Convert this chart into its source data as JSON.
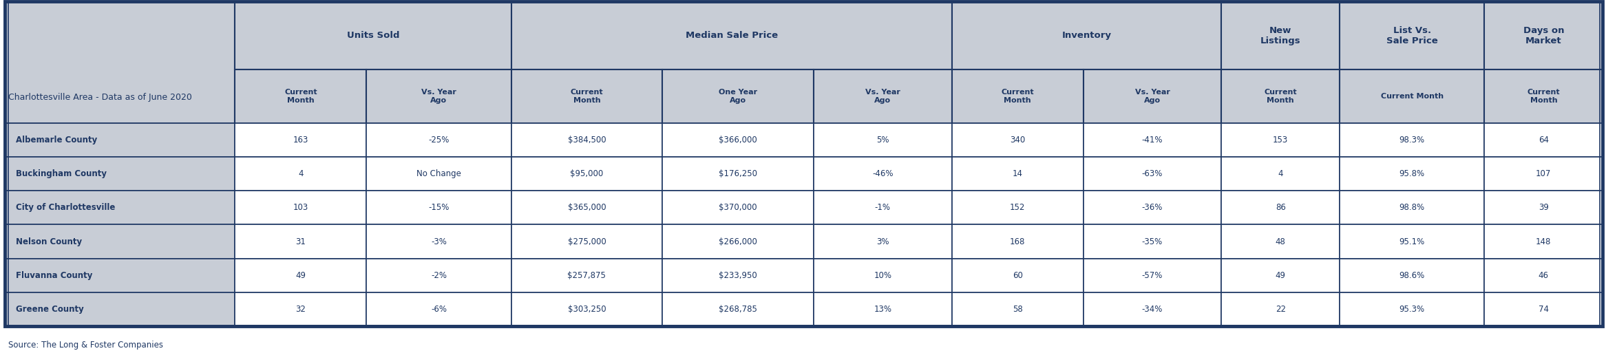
{
  "title": "Charlottesville Area - Data as of June 2020",
  "source": "Source: The Long & Foster Companies",
  "header_color": "#c8cdd6",
  "border_color": "#1f3864",
  "text_color": "#1f3864",
  "sub_headers": [
    "Current\nMonth",
    "Vs. Year\nAgo",
    "Current\nMonth",
    "One Year\nAgo",
    "Vs. Year\nAgo",
    "Current\nMonth",
    "Vs. Year\nAgo",
    "Current\nMonth",
    "Current Month",
    "Current\nMonth"
  ],
  "group_defs": [
    [
      1,
      2,
      "Units Sold"
    ],
    [
      3,
      5,
      "Median Sale Price"
    ],
    [
      6,
      7,
      "Inventory"
    ],
    [
      8,
      8,
      "New\nListings"
    ],
    [
      9,
      9,
      "List Vs.\nSale Price"
    ],
    [
      10,
      10,
      "Days on\nMarket"
    ]
  ],
  "row_labels": [
    "Albemarle County",
    "Buckingham County",
    "City of Charlottesville",
    "Nelson County",
    "Fluvanna County",
    "Greene County"
  ],
  "rows": [
    [
      "163",
      "-25%",
      "$384,500",
      "$366,000",
      "5%",
      "340",
      "-41%",
      "153",
      "98.3%",
      "64"
    ],
    [
      "4",
      "No Change",
      "$95,000",
      "$176,250",
      "-46%",
      "14",
      "-63%",
      "4",
      "95.8%",
      "107"
    ],
    [
      "103",
      "-15%",
      "$365,000",
      "$370,000",
      "-1%",
      "152",
      "-36%",
      "86",
      "98.8%",
      "39"
    ],
    [
      "31",
      "-3%",
      "$275,000",
      "$266,000",
      "3%",
      "168",
      "-35%",
      "48",
      "95.1%",
      "148"
    ],
    [
      "49",
      "-2%",
      "$257,875",
      "$233,950",
      "10%",
      "60",
      "-57%",
      "49",
      "98.6%",
      "46"
    ],
    [
      "32",
      "-6%",
      "$303,250",
      "$268,785",
      "13%",
      "58",
      "-34%",
      "22",
      "95.3%",
      "74"
    ]
  ],
  "col_rel_widths": [
    1.75,
    1.0,
    1.1,
    1.15,
    1.15,
    1.05,
    1.0,
    1.05,
    0.9,
    1.1,
    0.9
  ],
  "title_fontsize": 9.0,
  "source_fontsize": 8.5,
  "group_header_fontsize": 9.5,
  "sub_header_fontsize": 8.0,
  "data_fontsize": 8.5,
  "row_label_fontsize": 8.5
}
